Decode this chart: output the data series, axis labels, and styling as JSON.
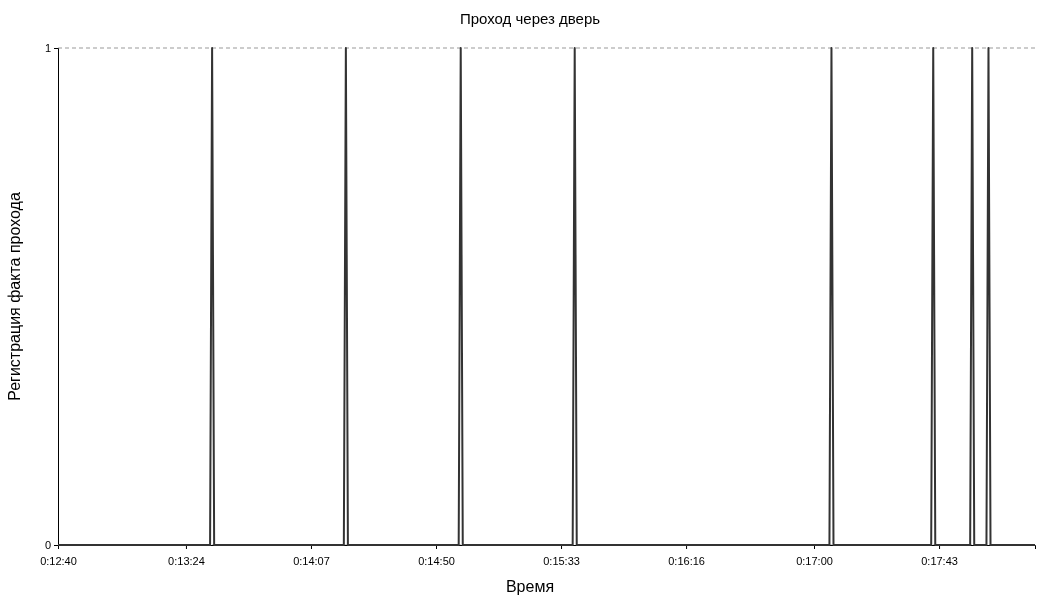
{
  "chart_data": {
    "type": "line",
    "title": "Проход через дверь",
    "xlabel": "Время",
    "ylabel": "Регистрация факта прохода",
    "x": [
      0.211111,
      0.225639,
      0.225833,
      0.226028,
      0.238417,
      0.238611,
      0.238806,
      0.249389,
      0.249583,
      0.249778,
      0.260278,
      0.260472,
      0.260667,
      0.284806,
      0.285,
      0.285194,
      0.294528,
      0.294722,
      0.294917,
      0.29825,
      0.298444,
      0.298639,
      0.299806,
      0.3,
      0.300194,
      0.304444
    ],
    "series": [
      {
        "color": "#333333",
        "values": [
          0,
          0,
          1,
          0,
          0,
          1,
          0,
          0,
          1,
          0,
          0,
          1,
          0,
          0,
          1,
          0,
          0,
          1,
          0,
          0,
          1,
          0,
          0,
          1,
          0,
          0
        ]
      }
    ],
    "xlim": [
      0.211111,
      0.304444
    ],
    "xticks": [
      {
        "value": 0.211111,
        "label": "0:12:40"
      },
      {
        "value": 0.223333,
        "label": "0:13:24"
      },
      {
        "value": 0.235278,
        "label": "0:14:07"
      },
      {
        "value": 0.247222,
        "label": "0:14:50"
      },
      {
        "value": 0.259167,
        "label": "0:15:33"
      },
      {
        "value": 0.271111,
        "label": "0:16:16"
      },
      {
        "value": 0.283333,
        "label": "0:17:00"
      },
      {
        "value": 0.295278,
        "label": "0:17:43"
      }
    ],
    "ylim": [
      0,
      1
    ],
    "yticks": [
      0,
      1
    ],
    "grid": "y",
    "marker": "none",
    "line_style": "solid"
  }
}
